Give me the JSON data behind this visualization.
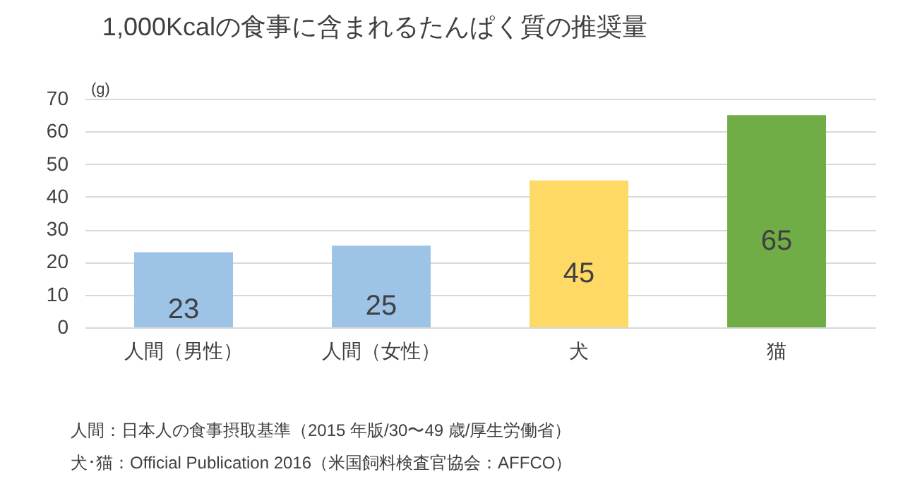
{
  "chart_data": {
    "type": "bar",
    "title": "1,000Kcalの食事に含まれるたんぱく質の推奨量",
    "ylabel": "(g)",
    "categories": [
      "人間（男性）",
      "人間（女性）",
      "犬",
      "猫"
    ],
    "values": [
      23,
      25,
      45,
      65
    ],
    "colors": [
      "#9dc3e6",
      "#9dc3e6",
      "#ffd966",
      "#70ad47"
    ],
    "ylim": [
      0,
      70
    ],
    "yticks": [
      0,
      10,
      20,
      30,
      40,
      50,
      60,
      70
    ],
    "grid": "y",
    "data_labels": true,
    "annotations": [
      "人間：日本人の食事摂取基準（2015 年版/30〜49 歳/厚生労働省）",
      "犬･猫：Official Publication 2016（米国飼料検査官協会：AFFCO）"
    ]
  }
}
